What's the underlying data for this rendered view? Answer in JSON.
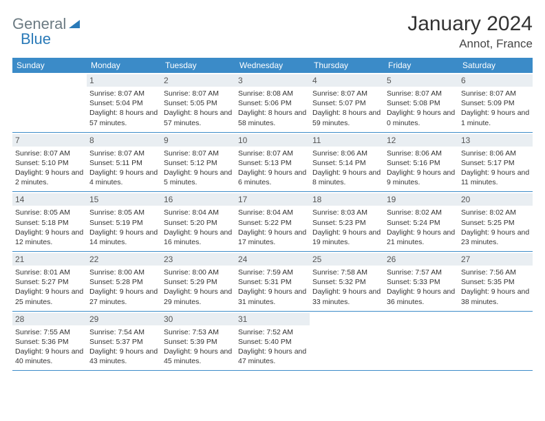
{
  "brand": {
    "part1": "General",
    "part2": "Blue"
  },
  "title": "January 2024",
  "location": "Annot, France",
  "colors": {
    "header_bg": "#3b8bc8",
    "header_text": "#ffffff",
    "daynum_bg": "#e9eef2",
    "row_border": "#3b8bc8",
    "logo_grey": "#6b7a82",
    "logo_blue": "#2a7ab8"
  },
  "dayNames": [
    "Sunday",
    "Monday",
    "Tuesday",
    "Wednesday",
    "Thursday",
    "Friday",
    "Saturday"
  ],
  "startOffset": 1,
  "daysInMonth": 31,
  "days": [
    {
      "n": 1,
      "sr": "8:07 AM",
      "ss": "5:04 PM",
      "dl": "8 hours and 57 minutes."
    },
    {
      "n": 2,
      "sr": "8:07 AM",
      "ss": "5:05 PM",
      "dl": "8 hours and 57 minutes."
    },
    {
      "n": 3,
      "sr": "8:08 AM",
      "ss": "5:06 PM",
      "dl": "8 hours and 58 minutes."
    },
    {
      "n": 4,
      "sr": "8:07 AM",
      "ss": "5:07 PM",
      "dl": "8 hours and 59 minutes."
    },
    {
      "n": 5,
      "sr": "8:07 AM",
      "ss": "5:08 PM",
      "dl": "9 hours and 0 minutes."
    },
    {
      "n": 6,
      "sr": "8:07 AM",
      "ss": "5:09 PM",
      "dl": "9 hours and 1 minute."
    },
    {
      "n": 7,
      "sr": "8:07 AM",
      "ss": "5:10 PM",
      "dl": "9 hours and 2 minutes."
    },
    {
      "n": 8,
      "sr": "8:07 AM",
      "ss": "5:11 PM",
      "dl": "9 hours and 4 minutes."
    },
    {
      "n": 9,
      "sr": "8:07 AM",
      "ss": "5:12 PM",
      "dl": "9 hours and 5 minutes."
    },
    {
      "n": 10,
      "sr": "8:07 AM",
      "ss": "5:13 PM",
      "dl": "9 hours and 6 minutes."
    },
    {
      "n": 11,
      "sr": "8:06 AM",
      "ss": "5:14 PM",
      "dl": "9 hours and 8 minutes."
    },
    {
      "n": 12,
      "sr": "8:06 AM",
      "ss": "5:16 PM",
      "dl": "9 hours and 9 minutes."
    },
    {
      "n": 13,
      "sr": "8:06 AM",
      "ss": "5:17 PM",
      "dl": "9 hours and 11 minutes."
    },
    {
      "n": 14,
      "sr": "8:05 AM",
      "ss": "5:18 PM",
      "dl": "9 hours and 12 minutes."
    },
    {
      "n": 15,
      "sr": "8:05 AM",
      "ss": "5:19 PM",
      "dl": "9 hours and 14 minutes."
    },
    {
      "n": 16,
      "sr": "8:04 AM",
      "ss": "5:20 PM",
      "dl": "9 hours and 16 minutes."
    },
    {
      "n": 17,
      "sr": "8:04 AM",
      "ss": "5:22 PM",
      "dl": "9 hours and 17 minutes."
    },
    {
      "n": 18,
      "sr": "8:03 AM",
      "ss": "5:23 PM",
      "dl": "9 hours and 19 minutes."
    },
    {
      "n": 19,
      "sr": "8:02 AM",
      "ss": "5:24 PM",
      "dl": "9 hours and 21 minutes."
    },
    {
      "n": 20,
      "sr": "8:02 AM",
      "ss": "5:25 PM",
      "dl": "9 hours and 23 minutes."
    },
    {
      "n": 21,
      "sr": "8:01 AM",
      "ss": "5:27 PM",
      "dl": "9 hours and 25 minutes."
    },
    {
      "n": 22,
      "sr": "8:00 AM",
      "ss": "5:28 PM",
      "dl": "9 hours and 27 minutes."
    },
    {
      "n": 23,
      "sr": "8:00 AM",
      "ss": "5:29 PM",
      "dl": "9 hours and 29 minutes."
    },
    {
      "n": 24,
      "sr": "7:59 AM",
      "ss": "5:31 PM",
      "dl": "9 hours and 31 minutes."
    },
    {
      "n": 25,
      "sr": "7:58 AM",
      "ss": "5:32 PM",
      "dl": "9 hours and 33 minutes."
    },
    {
      "n": 26,
      "sr": "7:57 AM",
      "ss": "5:33 PM",
      "dl": "9 hours and 36 minutes."
    },
    {
      "n": 27,
      "sr": "7:56 AM",
      "ss": "5:35 PM",
      "dl": "9 hours and 38 minutes."
    },
    {
      "n": 28,
      "sr": "7:55 AM",
      "ss": "5:36 PM",
      "dl": "9 hours and 40 minutes."
    },
    {
      "n": 29,
      "sr": "7:54 AM",
      "ss": "5:37 PM",
      "dl": "9 hours and 43 minutes."
    },
    {
      "n": 30,
      "sr": "7:53 AM",
      "ss": "5:39 PM",
      "dl": "9 hours and 45 minutes."
    },
    {
      "n": 31,
      "sr": "7:52 AM",
      "ss": "5:40 PM",
      "dl": "9 hours and 47 minutes."
    }
  ],
  "labels": {
    "sunrise": "Sunrise:",
    "sunset": "Sunset:",
    "daylight": "Daylight:"
  }
}
